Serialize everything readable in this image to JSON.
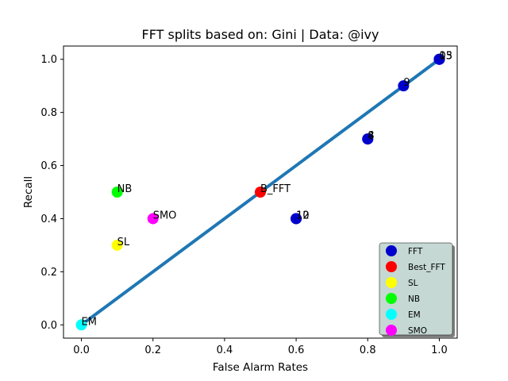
{
  "chart_data": {
    "type": "scatter",
    "title": "FFT splits based on: Gini  |  Data: @ivy",
    "xlabel": "False Alarm Rates",
    "ylabel": "Recall",
    "xlim": [
      -0.05,
      1.05
    ],
    "ylim": [
      -0.05,
      1.05
    ],
    "xticks": [
      0.0,
      0.2,
      0.4,
      0.6,
      0.8,
      1.0
    ],
    "yticks": [
      0.0,
      0.2,
      0.4,
      0.6,
      0.8,
      1.0
    ],
    "tick_labels": [
      "0.0",
      "0.2",
      "0.4",
      "0.6",
      "0.8",
      "1.0"
    ],
    "diagonal": {
      "x": [
        0,
        1
      ],
      "y": [
        0,
        1
      ],
      "color": "#1f77b4"
    },
    "legend_position": "lower-right",
    "series": [
      {
        "name": "FFT",
        "color": "#0000cc",
        "points": [
          {
            "x": 1.0,
            "y": 1.0,
            "label": "0"
          },
          {
            "x": 1.0,
            "y": 1.0,
            "label": "15"
          },
          {
            "x": 1.0,
            "y": 1.0,
            "label": "13"
          },
          {
            "x": 0.9,
            "y": 0.9,
            "label": "9"
          },
          {
            "x": 0.8,
            "y": 0.7,
            "label": "8"
          },
          {
            "x": 0.8,
            "y": 0.7,
            "label": "4"
          },
          {
            "x": 0.6,
            "y": 0.4,
            "label": "10"
          },
          {
            "x": 0.6,
            "y": 0.4,
            "label": "12"
          }
        ]
      },
      {
        "name": "Best_FFT",
        "color": "#ff0000",
        "points": [
          {
            "x": 0.5,
            "y": 0.5,
            "label": "B_FFT"
          }
        ]
      },
      {
        "name": "SL",
        "color": "#ffff00",
        "points": [
          {
            "x": 0.1,
            "y": 0.3,
            "label": "SL"
          }
        ]
      },
      {
        "name": "NB",
        "color": "#00ff00",
        "points": [
          {
            "x": 0.1,
            "y": 0.5,
            "label": "NB"
          }
        ]
      },
      {
        "name": "EM",
        "color": "#00ffff",
        "points": [
          {
            "x": 0.0,
            "y": 0.0,
            "label": "EM"
          }
        ]
      },
      {
        "name": "SMO",
        "color": "#ff00ff",
        "points": [
          {
            "x": 0.2,
            "y": 0.4,
            "label": "SMO"
          }
        ]
      }
    ]
  }
}
